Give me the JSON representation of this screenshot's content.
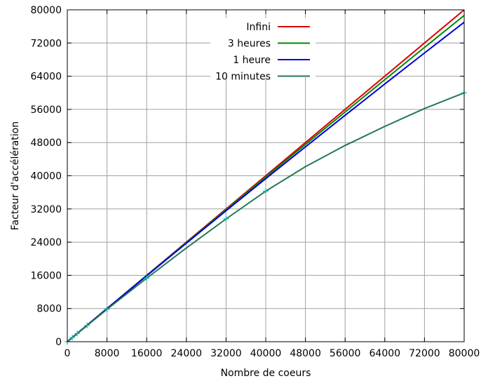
{
  "chart_data": {
    "type": "line",
    "xlabel": "Nombre de coeurs",
    "ylabel": "Facteur d'accélération",
    "xlim": [
      0,
      80000
    ],
    "ylim": [
      0,
      80000
    ],
    "xticks": [
      "0",
      "8000",
      "16000",
      "24000",
      "32000",
      "40000",
      "48000",
      "56000",
      "64000",
      "72000",
      "80000"
    ],
    "yticks": [
      "0",
      "8000",
      "16000",
      "24000",
      "32000",
      "40000",
      "48000",
      "56000",
      "64000",
      "72000",
      "80000"
    ],
    "grid": true,
    "legend_position": "top-center",
    "series": [
      {
        "name": "Infini",
        "color": "#dd0000",
        "x": [
          0,
          80000
        ],
        "y": [
          0,
          80000
        ]
      },
      {
        "name": "3 heures",
        "color": "#008800",
        "x": [
          0,
          8000,
          16000,
          24000,
          32000,
          40000,
          48000,
          56000,
          64000,
          72000,
          80000
        ],
        "y": [
          0,
          7990,
          15960,
          23900,
          31820,
          39700,
          47550,
          55380,
          63170,
          70930,
          78650
        ]
      },
      {
        "name": "1 heure",
        "color": "#0000dd",
        "x": [
          0,
          8000,
          16000,
          24000,
          32000,
          40000,
          48000,
          56000,
          64000,
          72000,
          80000
        ],
        "y": [
          0,
          7970,
          15880,
          23750,
          31560,
          39300,
          46970,
          54580,
          62120,
          69600,
          77000
        ]
      },
      {
        "name": "10 minutes",
        "color": "#227755",
        "x": [
          0,
          8000,
          16000,
          24000,
          32000,
          40000,
          48000,
          56000,
          64000,
          72000,
          80000
        ],
        "y": [
          0,
          7800,
          15300,
          22600,
          29600,
          36300,
          42200,
          47300,
          51900,
          56200,
          60000
        ]
      }
    ],
    "markers": {
      "color": "#00c0c0",
      "x": [
        0,
        1000,
        2000,
        4000,
        8000,
        16000,
        32000,
        40000,
        80000
      ],
      "y": [
        0,
        995,
        1980,
        3940,
        7800,
        15300,
        29600,
        36300,
        60000
      ]
    }
  }
}
